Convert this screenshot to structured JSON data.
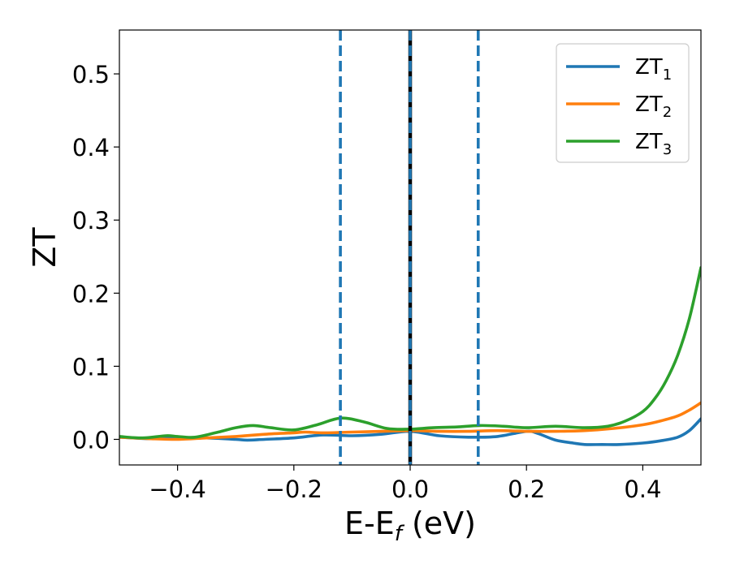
{
  "chart_data": {
    "type": "line",
    "xlabel_main": "E-E",
    "xlabel_sub": "f",
    "xlabel_unit": " (eV)",
    "ylabel": "ZT",
    "xlim": [
      -0.5,
      0.5
    ],
    "ylim": [
      -0.035,
      0.56
    ],
    "xticks": [
      -0.4,
      -0.2,
      0.0,
      0.2,
      0.4
    ],
    "xtick_labels": [
      "−0.4",
      "−0.2",
      "0.0",
      "0.2",
      "0.4"
    ],
    "yticks": [
      0.0,
      0.1,
      0.2,
      0.3,
      0.4,
      0.5
    ],
    "ytick_labels": [
      "0.0",
      "0.1",
      "0.2",
      "0.3",
      "0.4",
      "0.5"
    ],
    "grid": false,
    "legend_position": "top-right",
    "vlines": [
      {
        "x": -0.12,
        "style": "dashed",
        "color": "#1f77b4"
      },
      {
        "x": 0.0,
        "style": "solid",
        "color": "#000000"
      },
      {
        "x": 0.0,
        "style": "dashed",
        "color": "#1f77b4"
      },
      {
        "x": 0.117,
        "style": "dashed",
        "color": "#1f77b4"
      }
    ],
    "series": [
      {
        "name": "ZT",
        "sub": "1",
        "color": "#1f77b4",
        "x": [
          -0.5,
          -0.45,
          -0.4,
          -0.35,
          -0.3,
          -0.28,
          -0.25,
          -0.2,
          -0.15,
          -0.1,
          -0.05,
          0.0,
          0.05,
          0.1,
          0.15,
          0.2,
          0.22,
          0.25,
          0.28,
          0.3,
          0.33,
          0.36,
          0.4,
          0.43,
          0.46,
          0.48,
          0.5
        ],
        "y": [
          0.003,
          0.001,
          0.002,
          0.002,
          0.0,
          -0.001,
          0.0,
          0.002,
          0.006,
          0.005,
          0.007,
          0.011,
          0.005,
          0.003,
          0.004,
          0.011,
          0.008,
          -0.001,
          -0.005,
          -0.007,
          -0.007,
          -0.007,
          -0.005,
          -0.002,
          0.003,
          0.012,
          0.028
        ]
      },
      {
        "name": "ZT",
        "sub": "2",
        "color": "#ff7f0e",
        "x": [
          -0.5,
          -0.45,
          -0.4,
          -0.35,
          -0.3,
          -0.25,
          -0.2,
          -0.18,
          -0.15,
          -0.1,
          -0.05,
          0.0,
          0.05,
          0.1,
          0.15,
          0.2,
          0.25,
          0.3,
          0.35,
          0.4,
          0.43,
          0.46,
          0.48,
          0.5
        ],
        "y": [
          0.003,
          0.001,
          0.0,
          0.002,
          0.004,
          0.007,
          0.009,
          0.01,
          0.009,
          0.01,
          0.011,
          0.012,
          0.011,
          0.011,
          0.012,
          0.011,
          0.011,
          0.012,
          0.015,
          0.02,
          0.025,
          0.032,
          0.04,
          0.05
        ]
      },
      {
        "name": "ZT",
        "sub": "3",
        "color": "#2ca02c",
        "x": [
          -0.5,
          -0.46,
          -0.42,
          -0.4,
          -0.37,
          -0.33,
          -0.3,
          -0.27,
          -0.24,
          -0.2,
          -0.16,
          -0.12,
          -0.08,
          -0.04,
          0.0,
          0.04,
          0.08,
          0.12,
          0.16,
          0.2,
          0.25,
          0.3,
          0.34,
          0.37,
          0.4,
          0.42,
          0.44,
          0.46,
          0.48,
          0.5
        ],
        "y": [
          0.004,
          0.002,
          0.005,
          0.004,
          0.003,
          0.01,
          0.016,
          0.019,
          0.016,
          0.013,
          0.02,
          0.029,
          0.024,
          0.015,
          0.014,
          0.016,
          0.017,
          0.019,
          0.018,
          0.016,
          0.018,
          0.016,
          0.018,
          0.025,
          0.038,
          0.055,
          0.08,
          0.115,
          0.165,
          0.235
        ]
      }
    ]
  }
}
